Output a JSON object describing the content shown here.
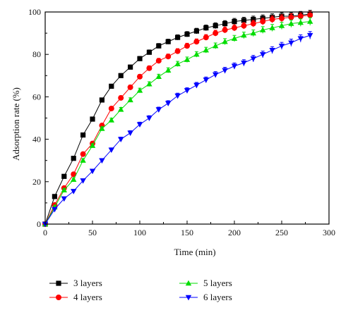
{
  "chart_data": {
    "type": "line",
    "xlabel": "Time (min)",
    "ylabel": "Adsorption rate (%)",
    "xlim": [
      0,
      300
    ],
    "ylim": [
      0,
      100
    ],
    "xticks": [
      0,
      50,
      100,
      150,
      200,
      250,
      300
    ],
    "yticks": [
      0,
      20,
      40,
      60,
      80,
      100
    ],
    "x": [
      0,
      10,
      20,
      30,
      40,
      50,
      60,
      70,
      80,
      90,
      100,
      110,
      120,
      130,
      140,
      150,
      160,
      170,
      180,
      190,
      200,
      210,
      220,
      230,
      240,
      250,
      260,
      270,
      280
    ],
    "legend_position": "bottom",
    "series": [
      {
        "name": "3 layers",
        "color": "#000000",
        "marker": "square",
        "values": [
          0,
          13,
          22.5,
          31,
          42,
          49.5,
          58.5,
          65,
          70,
          74,
          78,
          81,
          84,
          86,
          88,
          89.5,
          91,
          92.5,
          93.5,
          94.5,
          95.5,
          96,
          96.5,
          97,
          97.5,
          98,
          98,
          98.5,
          99
        ]
      },
      {
        "name": "4 layers",
        "color": "#ff0000",
        "marker": "circle",
        "values": [
          0,
          9,
          17,
          23.5,
          33,
          38,
          46.5,
          54.5,
          59.5,
          64.5,
          69.5,
          73.5,
          77,
          79,
          81.5,
          84,
          86,
          88,
          90,
          91.5,
          92.5,
          93.5,
          94.5,
          95.5,
          96.5,
          97,
          97.5,
          98,
          98.5
        ]
      },
      {
        "name": "5 layers",
        "color": "#00dd00",
        "marker": "triangle-up",
        "values": [
          0,
          8,
          16,
          21,
          30,
          37,
          45,
          49,
          54,
          58.5,
          63,
          66,
          69.5,
          72.5,
          75.5,
          77.5,
          80,
          82,
          84,
          86,
          87.5,
          89,
          90,
          91.5,
          92.5,
          93.5,
          94.5,
          95,
          95.5
        ]
      },
      {
        "name": "6 layers",
        "color": "#0000ff",
        "marker": "triangle-down",
        "values": [
          0,
          7,
          12,
          15.5,
          20.5,
          25,
          30,
          35,
          40,
          43,
          47,
          50,
          54,
          57,
          60.5,
          63,
          65.5,
          68,
          70.5,
          72.5,
          74.5,
          76,
          78,
          80,
          82,
          84,
          85.5,
          87.5,
          89
        ]
      }
    ]
  }
}
